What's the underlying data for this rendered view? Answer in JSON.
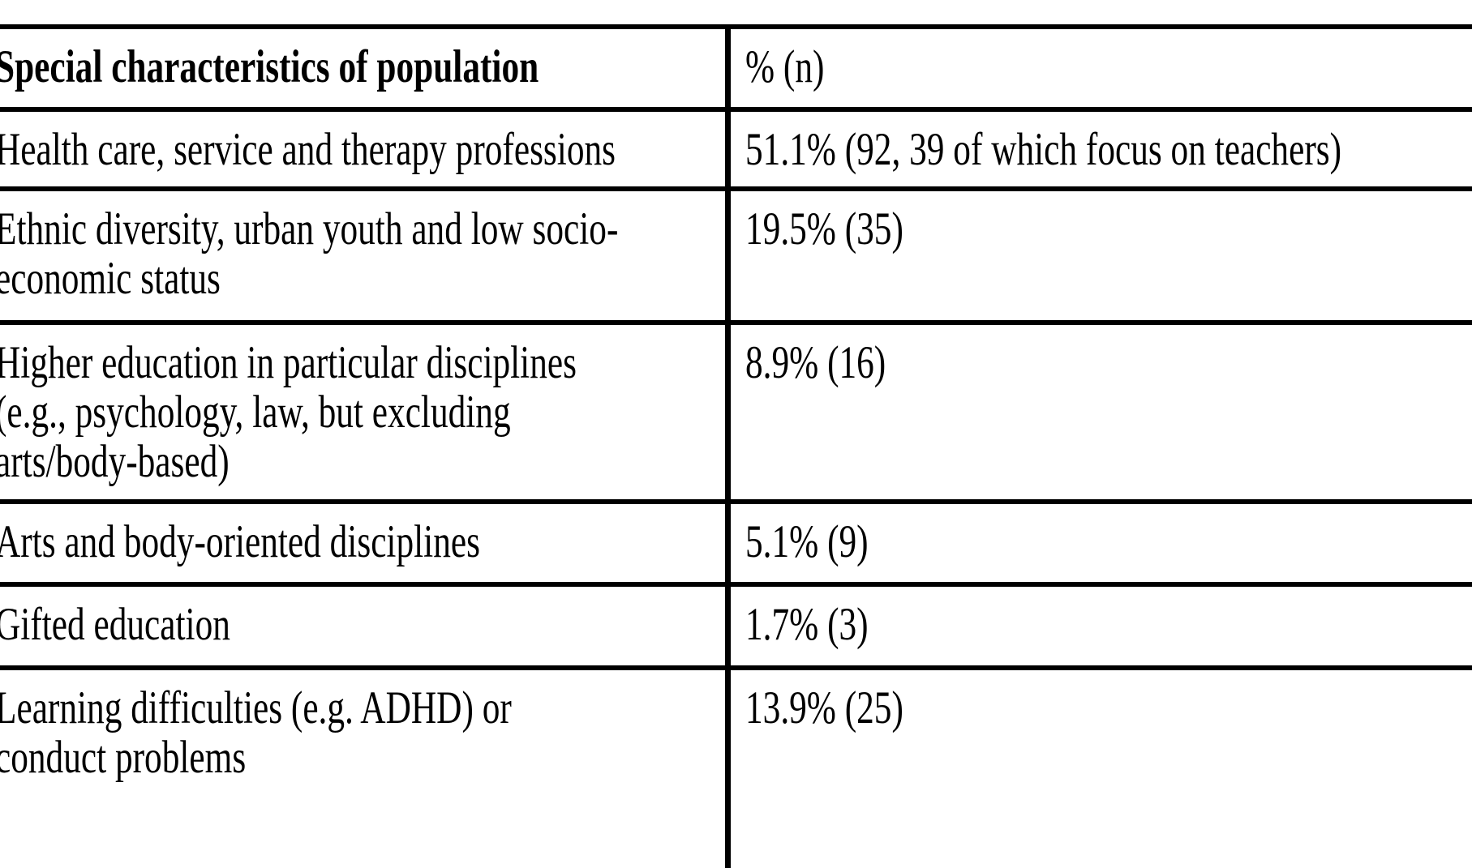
{
  "table": {
    "header": {
      "characteristic_label": "Special characteristics of population",
      "value_label": "% (n)"
    },
    "rows": [
      {
        "characteristic_lines": [
          "Health care, service and therapy professions"
        ],
        "value": "51.1% (92, 39 of which focus on teachers)"
      },
      {
        "characteristic_lines": [
          "Ethnic diversity, urban youth and low socio-",
          "economic status"
        ],
        "value": "19.5% (35)"
      },
      {
        "characteristic_lines": [
          "Higher education in particular disciplines",
          "(e.g., psychology, law, but excluding",
          "arts/body-based)"
        ],
        "value": "8.9% (16)"
      },
      {
        "characteristic_lines": [
          "Arts and body-oriented disciplines"
        ],
        "value": "5.1% (9)"
      },
      {
        "characteristic_lines": [
          "Gifted education"
        ],
        "value": "1.7% (3)"
      },
      {
        "characteristic_lines": [
          "Learning difficulties (e.g. ADHD) or",
          "conduct problems"
        ],
        "value": "13.9% (25)"
      }
    ]
  },
  "colors": {
    "text": "#000000",
    "border": "#000000",
    "background": "#ffffff"
  }
}
